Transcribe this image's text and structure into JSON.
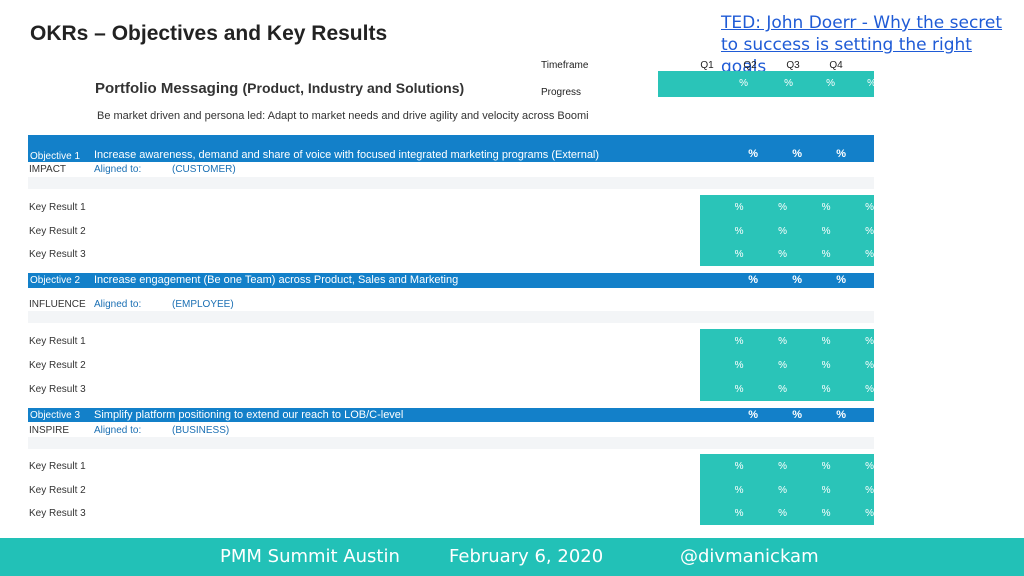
{
  "title": "OKRs – Objectives and Key Results",
  "ted_link": "TED: John Doerr - Why the secret to success is setting the right goals",
  "portfolio": {
    "main": "Portfolio Messaging",
    "sub": "(Product, Industry and Solutions)"
  },
  "mission": "Be market driven and persona led: Adapt to market needs and drive agility and velocity across Boomi",
  "timeframe_label": "Timeframe",
  "progress_label": "Progress",
  "quarters": [
    "Q1",
    "Q2",
    "Q3",
    "Q4"
  ],
  "pct": "%",
  "objectives": [
    {
      "num": "Objective 1",
      "text": "Increase  awareness, demand and share of voice with focused integrated marketing programs (External)",
      "category": "IMPACT",
      "aligned_label": "Aligned to:",
      "aligned_value": "(CUSTOMER)",
      "key_results": [
        "Key Result 1",
        "Key Result 2",
        "Key Result 3"
      ]
    },
    {
      "num": "Objective 2",
      "text": "Increase engagement (Be one Team) across Product, Sales and Marketing",
      "category": "INFLUENCE",
      "aligned_label": "Aligned to:",
      "aligned_value": "(EMPLOYEE)",
      "key_results": [
        "Key Result 1",
        "Key Result 2",
        "Key Result 3"
      ]
    },
    {
      "num": "Objective 3",
      "text": "Simplify platform positioning to extend our reach to LOB/C-level",
      "category": "INSPIRE",
      "aligned_label": "Aligned to:",
      "aligned_value": "(BUSINESS)",
      "key_results": [
        "Key Result 1",
        "Key Result 2",
        "Key Result 3"
      ]
    }
  ],
  "footer": {
    "event": "PMM Summit Austin",
    "date": "February 6, 2020",
    "handle": "@divmanickam"
  },
  "colors": {
    "teal": "#2ac4b8",
    "blue": "#1380c9",
    "footer": "#22c1b7",
    "link": "#1f5bd6"
  }
}
